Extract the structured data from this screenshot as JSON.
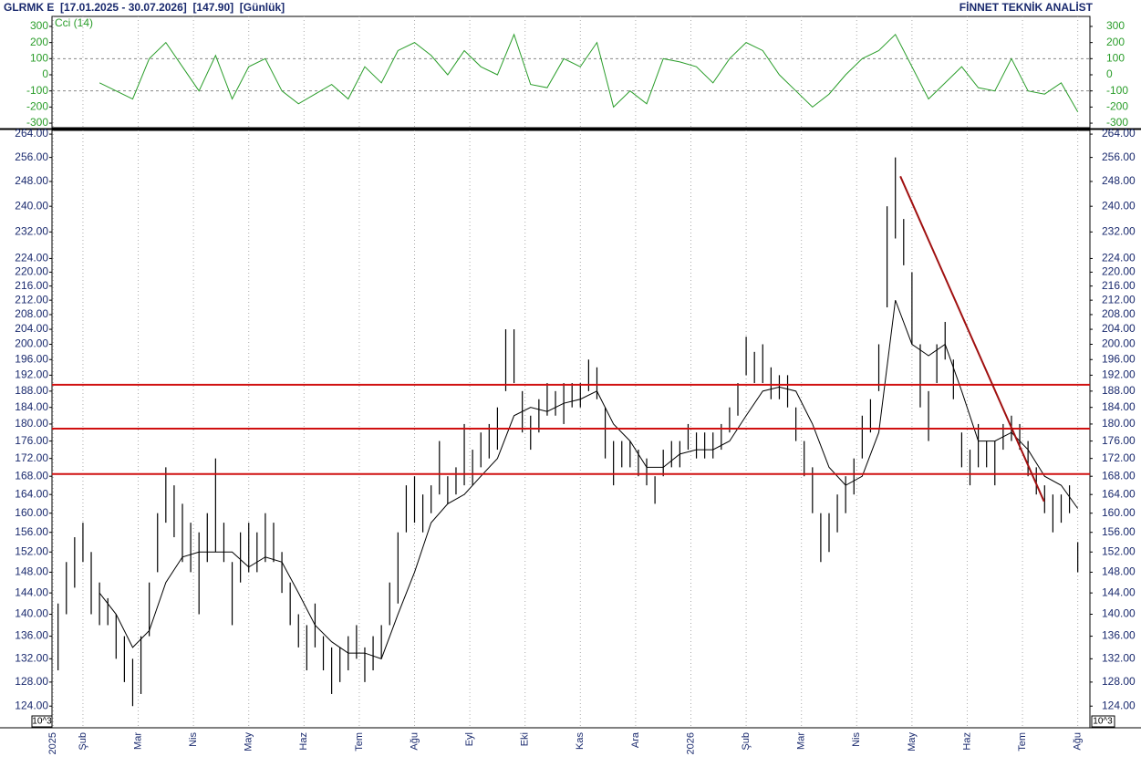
{
  "header": {
    "title": "GLRMK E  [17.01.2025 - 30.07.2026]  [147.90]  [Günlük]",
    "brand": "FİNNET TEKNİK ANALİST"
  },
  "chart_data": [
    {
      "type": "line",
      "label": "Cci (14)",
      "x": [
        1.3,
        1.6,
        1.9,
        2.2,
        2.5,
        2.8,
        3.1,
        3.4,
        3.7,
        4.0,
        4.3,
        4.6,
        4.9,
        5.2,
        5.5,
        5.8,
        6.1,
        6.4,
        6.7,
        7.0,
        7.3,
        7.6,
        7.9,
        8.2,
        8.5,
        8.8,
        9.1,
        9.4,
        9.7,
        10.0,
        10.3,
        10.6,
        10.9,
        11.2,
        11.5,
        11.8,
        12.1,
        12.4,
        12.7,
        13.0,
        13.3,
        13.6,
        13.9,
        14.2,
        14.5,
        14.8,
        15.1,
        15.4,
        15.7,
        16.0,
        16.3,
        16.6,
        16.9,
        17.2,
        17.5,
        17.8,
        18.1,
        18.4,
        18.7,
        19.0
      ],
      "series": [
        {
          "name": "Cci (14)",
          "color": "#2a9d2a",
          "values": [
            -50,
            -100,
            -150,
            100,
            200,
            50,
            -100,
            120,
            -150,
            50,
            100,
            -100,
            -180,
            -120,
            -60,
            -150,
            50,
            -50,
            150,
            200,
            120,
            0,
            150,
            50,
            0,
            250,
            -60,
            -80,
            100,
            50,
            200,
            -200,
            -100,
            -180,
            100,
            80,
            50,
            -50,
            100,
            200,
            150,
            0,
            -100,
            -200,
            -120,
            0,
            100,
            150,
            250,
            50,
            -150,
            -50,
            50,
            -80,
            -100,
            100,
            -100,
            -120,
            -50,
            -230
          ]
        }
      ],
      "ylim": [
        -328,
        362
      ],
      "yticks": [
        300,
        200,
        100,
        0,
        -100,
        -200,
        -300
      ],
      "ref_lines": [
        100,
        -100
      ]
    },
    {
      "type": "ohlc",
      "color": "#000000",
      "log": true,
      "unit_label": "10^3",
      "x": [
        0.55,
        0.7,
        0.85,
        1,
        1.15,
        1.3,
        1.45,
        1.6,
        1.75,
        1.9,
        2.05,
        2.2,
        2.35,
        2.5,
        2.65,
        2.8,
        2.95,
        3.1,
        3.25,
        3.4,
        3.55,
        3.7,
        3.85,
        4,
        4.15,
        4.3,
        4.45,
        4.6,
        4.75,
        4.9,
        5.05,
        5.2,
        5.35,
        5.5,
        5.65,
        5.8,
        5.95,
        6.1,
        6.25,
        6.4,
        6.55,
        6.7,
        6.85,
        7,
        7.15,
        7.3,
        7.45,
        7.6,
        7.75,
        7.9,
        8.05,
        8.2,
        8.35,
        8.5,
        8.65,
        8.8,
        8.95,
        9.1,
        9.25,
        9.4,
        9.55,
        9.7,
        9.85,
        10,
        10.15,
        10.3,
        10.45,
        10.6,
        10.75,
        10.9,
        11.05,
        11.2,
        11.35,
        11.5,
        11.65,
        11.8,
        11.95,
        12.1,
        12.25,
        12.4,
        12.55,
        12.7,
        12.85,
        13,
        13.15,
        13.3,
        13.45,
        13.6,
        13.75,
        13.9,
        14.05,
        14.2,
        14.35,
        14.5,
        14.65,
        14.8,
        14.95,
        15.1,
        15.25,
        15.4,
        15.55,
        15.7,
        15.85,
        16,
        16.15,
        16.3,
        16.45,
        16.6,
        16.75,
        16.9,
        17.05,
        17.2,
        17.35,
        17.5,
        17.65,
        17.8,
        17.95,
        18.1,
        18.25,
        18.4,
        18.55,
        18.7,
        18.85,
        19
      ],
      "high": [
        142,
        150,
        155,
        158,
        152,
        146,
        143,
        140,
        136,
        132,
        136,
        146,
        160,
        170,
        166,
        162,
        158,
        156,
        160,
        172,
        158,
        150,
        156,
        158,
        156,
        160,
        158,
        152,
        146,
        140,
        138,
        142,
        136,
        134,
        134,
        136,
        138,
        134,
        136,
        138,
        146,
        156,
        166,
        168,
        164,
        166,
        176,
        168,
        170,
        180,
        174,
        178,
        180,
        184,
        204,
        204,
        188,
        182,
        186,
        190,
        188,
        190,
        190,
        190,
        196,
        194,
        184,
        176,
        176,
        176,
        174,
        172,
        168,
        174,
        176,
        176,
        180,
        178,
        178,
        178,
        180,
        184,
        190,
        202,
        198,
        200,
        194,
        192,
        192,
        184,
        176,
        170,
        160,
        160,
        164,
        168,
        172,
        182,
        186,
        200,
        240,
        256,
        236,
        220,
        200,
        188,
        200,
        206,
        196,
        178,
        174,
        180,
        176,
        176,
        180,
        182,
        180,
        176,
        170,
        166,
        164,
        164,
        166,
        154
      ],
      "low": [
        130,
        140,
        145,
        150,
        140,
        138,
        138,
        132,
        128,
        124,
        126,
        136,
        148,
        158,
        155,
        150,
        148,
        140,
        150,
        152,
        150,
        138,
        146,
        148,
        148,
        150,
        150,
        144,
        138,
        134,
        130,
        134,
        130,
        126,
        128,
        130,
        132,
        128,
        130,
        132,
        138,
        142,
        156,
        158,
        156,
        160,
        164,
        162,
        164,
        166,
        166,
        170,
        172,
        174,
        188,
        190,
        178,
        174,
        178,
        182,
        182,
        180,
        184,
        184,
        188,
        186,
        172,
        166,
        170,
        170,
        168,
        166,
        162,
        168,
        170,
        170,
        174,
        172,
        172,
        172,
        174,
        178,
        182,
        192,
        190,
        190,
        186,
        186,
        184,
        176,
        168,
        160,
        150,
        152,
        156,
        160,
        164,
        172,
        178,
        188,
        210,
        230,
        222,
        200,
        184,
        176,
        190,
        196,
        186,
        170,
        166,
        170,
        170,
        166,
        174,
        176,
        174,
        168,
        164,
        160,
        156,
        158,
        160,
        148
      ],
      "ma": {
        "color": "#000000",
        "x": [
          1.3,
          1.6,
          1.9,
          2.2,
          2.5,
          2.8,
          3.1,
          3.4,
          3.7,
          4.0,
          4.3,
          4.6,
          4.9,
          5.2,
          5.5,
          5.8,
          6.1,
          6.4,
          6.7,
          7.0,
          7.3,
          7.6,
          7.9,
          8.2,
          8.5,
          8.8,
          9.1,
          9.4,
          9.7,
          10.0,
          10.3,
          10.6,
          10.9,
          11.2,
          11.5,
          11.8,
          12.1,
          12.4,
          12.7,
          13.0,
          13.3,
          13.6,
          13.9,
          14.2,
          14.5,
          14.8,
          15.1,
          15.4,
          15.7,
          16.0,
          16.3,
          16.6,
          16.9,
          17.2,
          17.5,
          17.8,
          18.1,
          18.4,
          18.7,
          19.0
        ],
        "values": [
          144,
          140,
          134,
          137,
          146,
          151,
          152,
          152,
          152,
          149,
          151,
          150,
          144,
          138,
          135,
          133,
          133,
          132,
          140,
          148,
          158,
          162,
          164,
          168,
          172,
          182,
          184,
          183,
          185,
          186,
          188,
          180,
          176,
          170,
          170,
          173,
          174,
          174,
          176,
          182,
          188,
          189,
          188,
          180,
          170,
          166,
          168,
          178,
          212,
          200,
          197,
          200,
          188,
          176,
          176,
          178,
          174,
          168,
          166,
          161
        ]
      },
      "hlines": {
        "color": "#d01010",
        "values": [
          189.6,
          178.9,
          168.5
        ]
      },
      "trend": {
        "color": "#a01010",
        "x": [
          15.79,
          18.39
        ],
        "values": [
          249.7,
          162.5
        ]
      },
      "ylim": [
        120.5,
        265.3
      ],
      "yticks": [
        {
          "value": 264,
          "label": "264.00"
        },
        {
          "value": 256,
          "label": "256.00"
        },
        {
          "value": 248,
          "label": "248.00"
        },
        {
          "value": 240,
          "label": "240.00"
        },
        {
          "value": 232,
          "label": "232.00"
        },
        {
          "value": 224,
          "label": "224.00"
        },
        {
          "value": 220,
          "label": "220.00"
        },
        {
          "value": 216,
          "label": "216.00"
        },
        {
          "value": 212,
          "label": "212.00"
        },
        {
          "value": 208,
          "label": "208.00"
        },
        {
          "value": 204,
          "label": "204.00"
        },
        {
          "value": 200,
          "label": "200.00"
        },
        {
          "value": 196,
          "label": "196.00"
        },
        {
          "value": 192,
          "label": "192.00"
        },
        {
          "value": 188,
          "label": "188.00"
        },
        {
          "value": 184,
          "label": "184.00"
        },
        {
          "value": 180,
          "label": "180.00"
        },
        {
          "value": 176,
          "label": "176.00"
        },
        {
          "value": 172,
          "label": "172.00"
        },
        {
          "value": 168,
          "label": "168.00"
        },
        {
          "value": 164,
          "label": "164.00"
        },
        {
          "value": 160,
          "label": "160.00"
        },
        {
          "value": 156,
          "label": "156.00"
        },
        {
          "value": 152,
          "label": "152.00"
        },
        {
          "value": 148,
          "label": "148.00"
        },
        {
          "value": 144,
          "label": "144.00"
        },
        {
          "value": 140,
          "label": "140.00"
        },
        {
          "value": 136,
          "label": "136.00"
        },
        {
          "value": 132,
          "label": "132.00"
        },
        {
          "value": 128,
          "label": "128.00"
        },
        {
          "value": 124,
          "label": "124.00"
        }
      ],
      "xlim": [
        0.44,
        19.22
      ],
      "xticks": [
        {
          "value": 0.46,
          "label": "2025"
        },
        {
          "value": 1,
          "label": "Şub"
        },
        {
          "value": 2,
          "label": "Mar"
        },
        {
          "value": 3,
          "label": "Nis"
        },
        {
          "value": 4,
          "label": "May"
        },
        {
          "value": 5,
          "label": "Haz"
        },
        {
          "value": 6,
          "label": "Tem"
        },
        {
          "value": 7,
          "label": "Ağu"
        },
        {
          "value": 8,
          "label": "Eyl"
        },
        {
          "value": 9,
          "label": "Eki"
        },
        {
          "value": 10,
          "label": "Kas"
        },
        {
          "value": 11,
          "label": "Ara"
        },
        {
          "value": 12,
          "label": "2026"
        },
        {
          "value": 13,
          "label": "Şub"
        },
        {
          "value": 14,
          "label": "Mar"
        },
        {
          "value": 15,
          "label": "Nis"
        },
        {
          "value": 16,
          "label": "May"
        },
        {
          "value": 17,
          "label": "Haz"
        },
        {
          "value": 18,
          "label": "Tem"
        },
        {
          "value": 19,
          "label": "Ağu"
        }
      ]
    }
  ]
}
